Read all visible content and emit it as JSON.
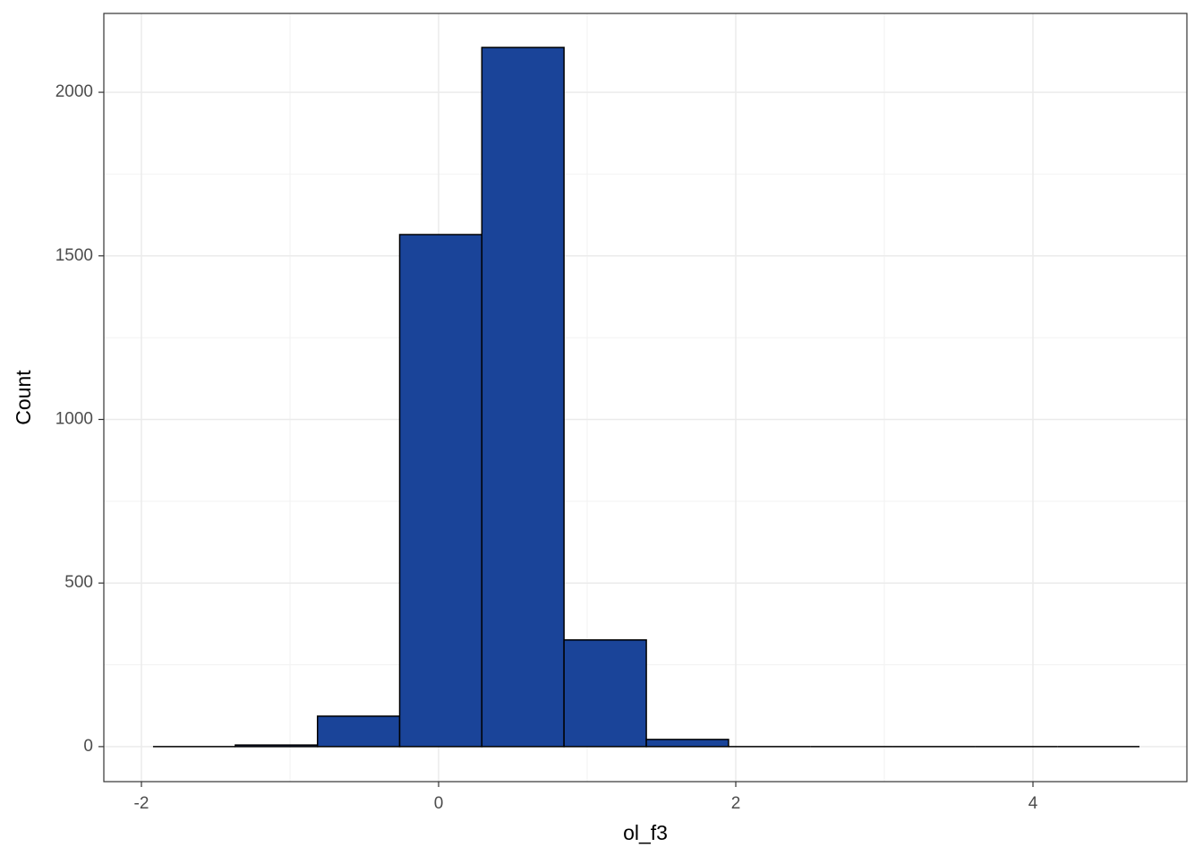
{
  "chart_data": {
    "type": "histogram",
    "x_label": "ol_f3",
    "y_label": "Count",
    "bins": [
      -1.922,
      -1.368,
      -0.815,
      -0.262,
      0.291,
      0.844,
      1.398,
      1.951,
      2.504,
      3.057,
      3.611,
      4.164,
      4.717
    ],
    "counts": [
      0,
      5,
      93,
      1565,
      2137,
      326,
      22,
      0,
      0,
      0,
      0,
      0
    ],
    "color": "#1a4499",
    "xlim": [
      -2.253,
      5.036
    ],
    "xticks": [
      -2,
      0,
      2,
      4
    ],
    "ylim": [
      -107,
      2241
    ],
    "yticks": [
      0,
      500,
      1000,
      1500,
      2000
    ],
    "grid": true
  }
}
